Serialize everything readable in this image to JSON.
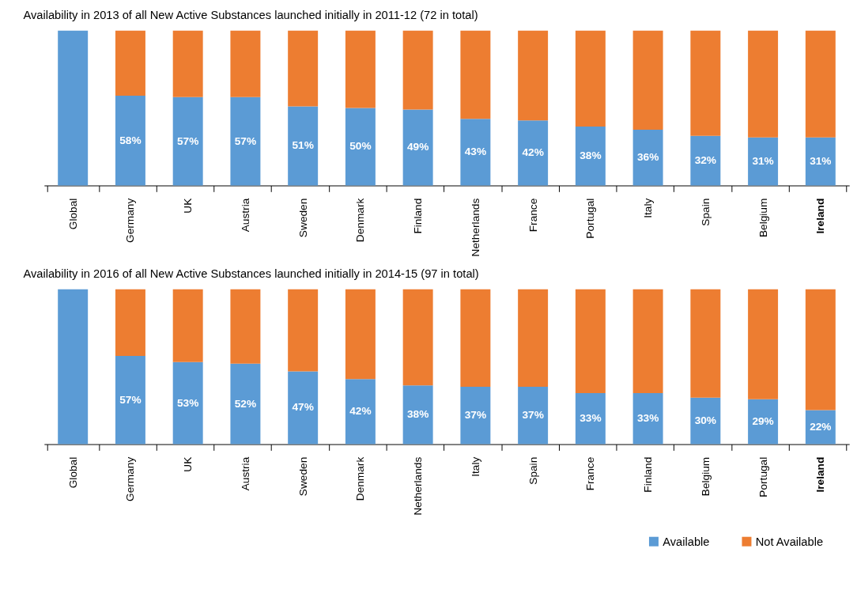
{
  "chart_data": [
    {
      "type": "bar",
      "stacked": true,
      "title": "Availability in 2013 of all New Active Substances launched initially in 2011-12 (72 in total)",
      "categories": [
        "Global",
        "Germany",
        "UK",
        "Austria",
        "Sweden",
        "Denmark",
        "Finland",
        "Netherlands",
        "France",
        "Portugal",
        "Italy",
        "Spain",
        "Belgium",
        "Ireland"
      ],
      "series": [
        {
          "color": "#5b9bd5",
          "values": [
            100,
            58,
            57,
            57,
            51,
            50,
            49,
            43,
            42,
            38,
            36,
            32,
            31,
            31
          ],
          "value_labels": [
            null,
            "58%",
            "57%",
            "57%",
            "51%",
            "50%",
            "49%",
            "43%",
            "42%",
            "38%",
            "36%",
            "32%",
            "31%",
            "31%"
          ]
        },
        {
          "color": "#ed7d31",
          "values": [
            0,
            42,
            43,
            43,
            49,
            50,
            51,
            57,
            58,
            62,
            64,
            68,
            69,
            69
          ]
        }
      ],
      "grid": false
    },
    {
      "type": "bar",
      "stacked": true,
      "title": "Availability in 2016 of all New Active Substances launched initially in 2014-15 (97 in total)",
      "categories": [
        "Global",
        "Germany",
        "UK",
        "Austria",
        "Sweden",
        "Denmark",
        "Netherlands",
        "Italy",
        "Spain",
        "France",
        "Finland",
        "Belgium",
        "Portugal",
        "Ireland"
      ],
      "series": [
        {
          "name": "Available",
          "color": "#5b9bd5",
          "values": [
            100,
            57,
            53,
            52,
            47,
            42,
            38,
            37,
            37,
            33,
            33,
            30,
            29,
            22
          ],
          "value_labels": [
            null,
            "57%",
            "53%",
            "52%",
            "47%",
            "42%",
            "38%",
            "37%",
            "37%",
            "33%",
            "33%",
            "30%",
            "29%",
            "22%"
          ]
        },
        {
          "name": "Not Available",
          "color": "#ed7d31",
          "values": [
            0,
            43,
            47,
            48,
            53,
            58,
            62,
            63,
            63,
            67,
            67,
            70,
            71,
            78
          ]
        }
      ],
      "grid": false,
      "legend": "bottom right"
    }
  ]
}
